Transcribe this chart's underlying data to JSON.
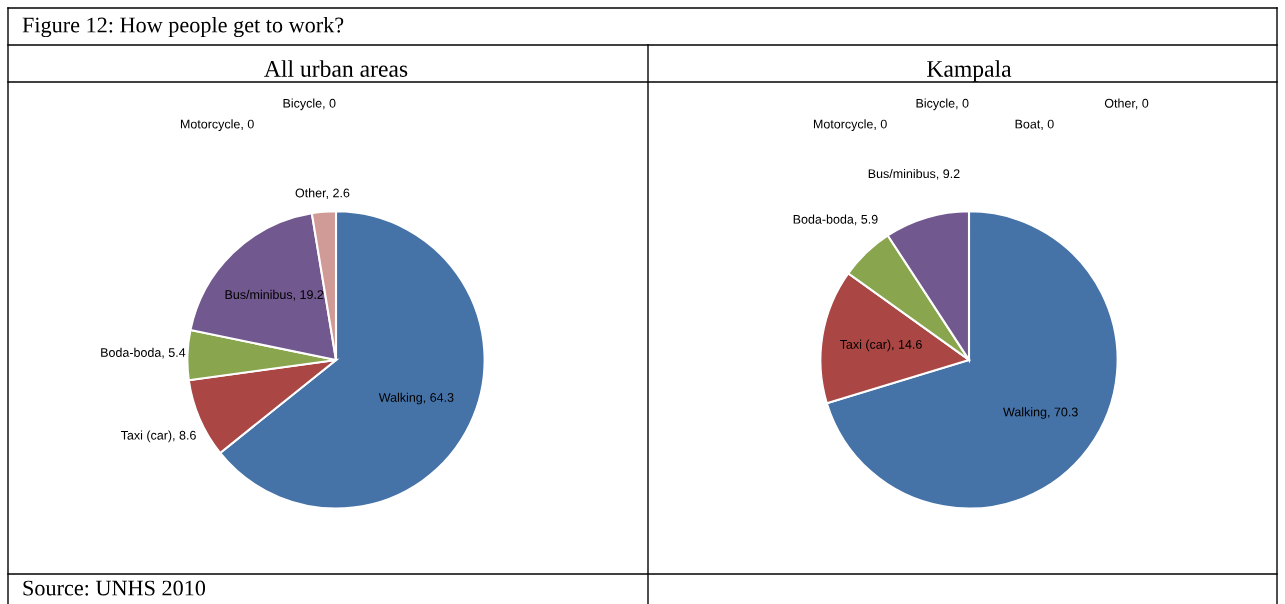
{
  "chart_data": [
    {
      "type": "pie",
      "title": "All urban areas",
      "annotations": [
        "Figure 12: How people get to work?",
        "Source: UNHS 2010"
      ],
      "categories": [
        "Walking",
        "Taxi (car)",
        "Boda-boda",
        "Bus/minibus",
        "Motorcycle",
        "Bicycle",
        "Other"
      ],
      "values": [
        64.3,
        8.6,
        5.4,
        19.2,
        0,
        0,
        2.6
      ],
      "value_labels": [
        ", 64.3",
        ", 8.6",
        ", 5.4",
        ", 19.2",
        ", 0",
        ", 0",
        ", 2.6"
      ],
      "colors": [
        "#4572a7",
        "#aa4643",
        "#89a54e",
        "#71588f",
        "#4198af",
        "#db843d",
        "#d09a96"
      ]
    },
    {
      "type": "pie",
      "title": "Kampala",
      "categories": [
        "Walking",
        "Taxi (car)",
        "Boda-boda",
        "Bus/minibus",
        "Motorcycle",
        "Bicycle",
        "Boat",
        "Other"
      ],
      "values": [
        70.3,
        14.6,
        5.9,
        9.2,
        0,
        0,
        0,
        0
      ],
      "value_labels": [
        ", 70.3",
        ", 14.6",
        ", 5.9",
        ", 9.2",
        ", 0",
        ", 0",
        ", 0",
        ", 0"
      ],
      "colors": [
        "#4572a7",
        "#aa4643",
        "#89a54e",
        "#71588f",
        "#4198af",
        "#db843d",
        "#93a9cf",
        "#d09a96"
      ]
    }
  ]
}
